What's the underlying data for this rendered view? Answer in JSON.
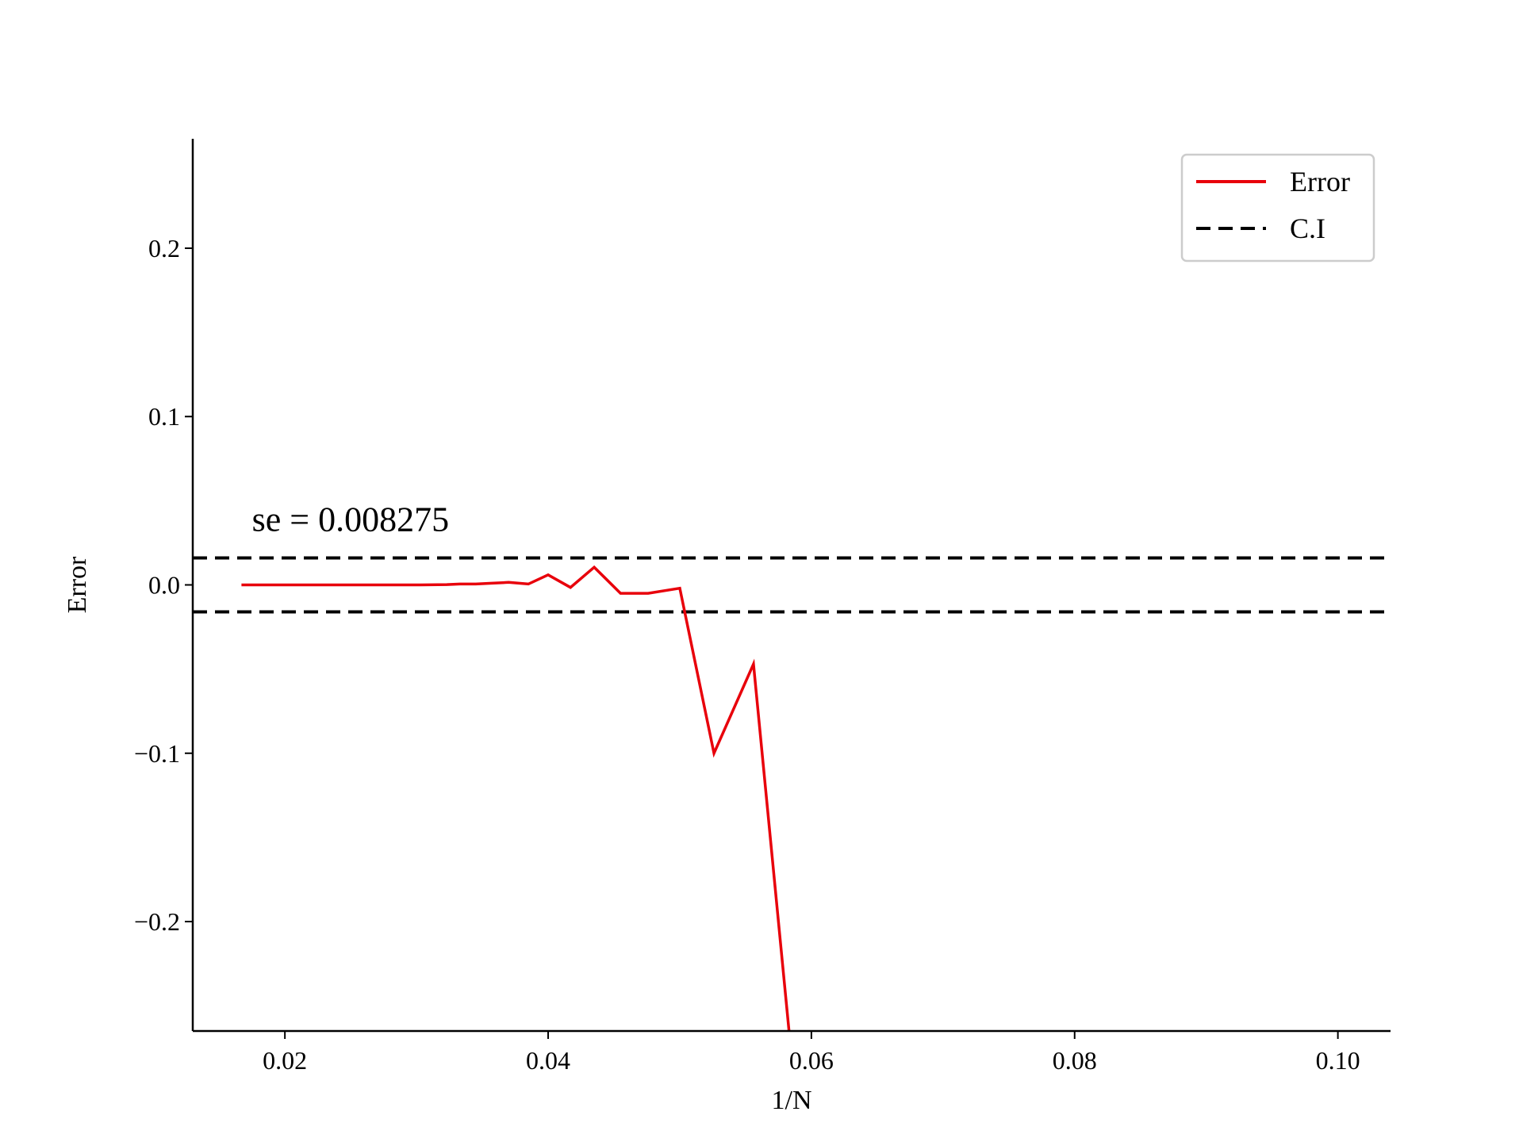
{
  "chart_data": {
    "type": "line",
    "title": "",
    "xlabel": "1/N",
    "ylabel": "Error",
    "xlim": [
      0.013,
      0.104
    ],
    "ylim": [
      -0.265,
      0.265
    ],
    "xticks": [
      {
        "value": 0.02,
        "label": "0.02"
      },
      {
        "value": 0.04,
        "label": "0.04"
      },
      {
        "value": 0.06,
        "label": "0.06"
      },
      {
        "value": 0.08,
        "label": "0.08"
      },
      {
        "value": 0.1,
        "label": "0.10"
      }
    ],
    "yticks": [
      {
        "value": -0.2,
        "label": "−0.2"
      },
      {
        "value": -0.1,
        "label": "−0.1"
      },
      {
        "value": 0.0,
        "label": "0.0"
      },
      {
        "value": 0.1,
        "label": "0.1"
      },
      {
        "value": 0.2,
        "label": "0.2"
      }
    ],
    "grid": false,
    "legend_position": "top-right",
    "annotation": {
      "text": "se = 0.008275",
      "x": 0.0175,
      "y": 0.032
    },
    "series": [
      {
        "name": "Error",
        "color": "#e8000b",
        "style": "solid",
        "x": [
          0.0167,
          0.0185,
          0.0204,
          0.0222,
          0.0238,
          0.0256,
          0.027,
          0.0286,
          0.0303,
          0.0323,
          0.0333,
          0.0345,
          0.0357,
          0.037,
          0.0385,
          0.04,
          0.0417,
          0.0435,
          0.0455,
          0.0476,
          0.05,
          0.0526,
          0.0556,
          0.0583
        ],
        "y": [
          0.0,
          0.0,
          0.0,
          0.0,
          0.0,
          0.0,
          0.0,
          0.0,
          0.0,
          0.0002,
          0.0005,
          0.0005,
          0.001,
          0.0015,
          0.0005,
          0.006,
          -0.0015,
          0.0105,
          -0.005,
          -0.005,
          -0.002,
          -0.1,
          -0.047,
          -0.265
        ]
      },
      {
        "name": "C.I",
        "color": "#000000",
        "style": "dashed",
        "hlines": [
          0.016,
          -0.016
        ]
      }
    ]
  }
}
